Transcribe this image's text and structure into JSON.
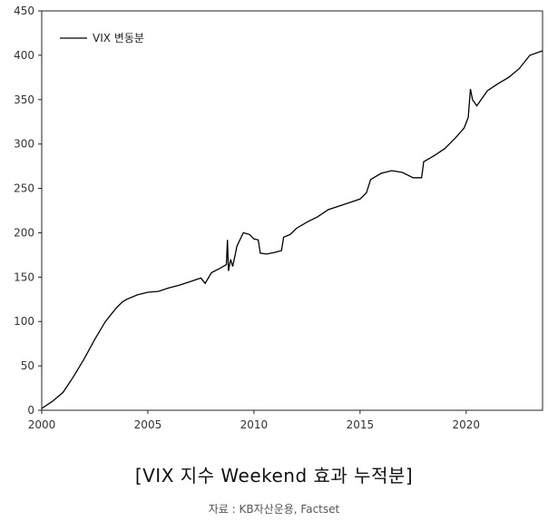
{
  "title": "[VIX 지수 Weekend 효과 누적분]",
  "source": "자료 : KB자산운용, Factset",
  "chart_data": {
    "type": "line",
    "title": "[VIX 지수 Weekend 효과 누적분]",
    "xlabel": "",
    "ylabel": "",
    "xlim": [
      2000,
      2023.6
    ],
    "ylim": [
      0,
      450
    ],
    "x_ticks": [
      "2000",
      "2005",
      "2010",
      "2015",
      "2020"
    ],
    "y_ticks": [
      "0",
      "50",
      "100",
      "150",
      "200",
      "250",
      "300",
      "350",
      "400",
      "450"
    ],
    "grid": false,
    "legend_position": "top-left",
    "series": [
      {
        "name": "VIX 변동분",
        "color": "#000000",
        "points": [
          [
            2000.0,
            2
          ],
          [
            2000.5,
            10
          ],
          [
            2001.0,
            20
          ],
          [
            2001.5,
            38
          ],
          [
            2002.0,
            58
          ],
          [
            2002.5,
            80
          ],
          [
            2003.0,
            100
          ],
          [
            2003.5,
            115
          ],
          [
            2003.8,
            122
          ],
          [
            2004.0,
            125
          ],
          [
            2004.5,
            130
          ],
          [
            2005.0,
            133
          ],
          [
            2005.5,
            134
          ],
          [
            2006.0,
            138
          ],
          [
            2006.5,
            141
          ],
          [
            2007.0,
            145
          ],
          [
            2007.5,
            149
          ],
          [
            2007.7,
            143
          ],
          [
            2008.0,
            155
          ],
          [
            2008.4,
            160
          ],
          [
            2008.7,
            164
          ],
          [
            2008.75,
            192
          ],
          [
            2008.8,
            157
          ],
          [
            2008.9,
            170
          ],
          [
            2009.0,
            162
          ],
          [
            2009.2,
            185
          ],
          [
            2009.5,
            200
          ],
          [
            2009.8,
            198
          ],
          [
            2010.0,
            193
          ],
          [
            2010.2,
            192
          ],
          [
            2010.3,
            177
          ],
          [
            2010.6,
            176
          ],
          [
            2011.0,
            178
          ],
          [
            2011.3,
            180
          ],
          [
            2011.4,
            195
          ],
          [
            2011.7,
            198
          ],
          [
            2012.0,
            205
          ],
          [
            2012.5,
            212
          ],
          [
            2013.0,
            218
          ],
          [
            2013.5,
            226
          ],
          [
            2014.0,
            230
          ],
          [
            2014.5,
            234
          ],
          [
            2015.0,
            238
          ],
          [
            2015.3,
            245
          ],
          [
            2015.5,
            260
          ],
          [
            2016.0,
            267
          ],
          [
            2016.5,
            270
          ],
          [
            2017.0,
            268
          ],
          [
            2017.5,
            262
          ],
          [
            2017.9,
            262
          ],
          [
            2018.0,
            280
          ],
          [
            2018.5,
            287
          ],
          [
            2019.0,
            295
          ],
          [
            2019.5,
            307
          ],
          [
            2019.9,
            318
          ],
          [
            2020.1,
            330
          ],
          [
            2020.2,
            362
          ],
          [
            2020.3,
            350
          ],
          [
            2020.5,
            343
          ],
          [
            2021.0,
            360
          ],
          [
            2021.5,
            368
          ],
          [
            2022.0,
            375
          ],
          [
            2022.5,
            385
          ],
          [
            2023.0,
            400
          ],
          [
            2023.6,
            405
          ]
        ]
      }
    ]
  }
}
